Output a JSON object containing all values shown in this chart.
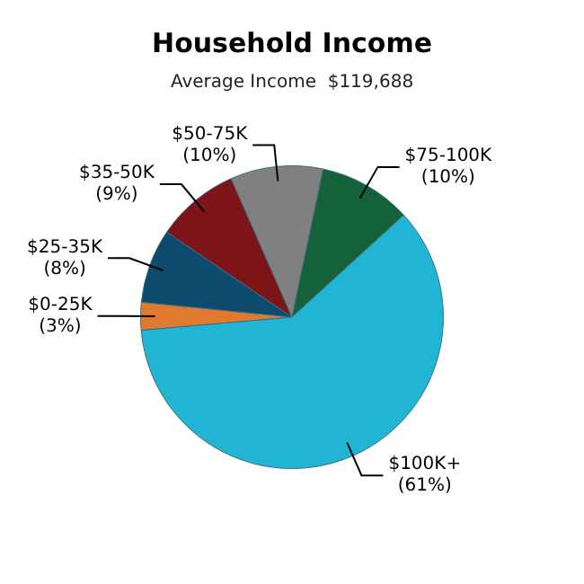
{
  "chart_data": {
    "type": "pie",
    "title": "Household Income",
    "subtitle": "Average Income  $119,688",
    "categories": [
      "$0-25K",
      "$25-35K",
      "$35-50K",
      "$50-75K",
      "$75-100K",
      "$100K+"
    ],
    "values": [
      3,
      8,
      9,
      10,
      10,
      61
    ],
    "colors": [
      "#e07a2e",
      "#0d4a6e",
      "#7d1418",
      "#808080",
      "#14613a",
      "#22b5d3"
    ],
    "value_labels": [
      "(3%)",
      "(8%)",
      "(9%)",
      "(10%)",
      "(10%)",
      "(61%)"
    ],
    "legend": false
  }
}
